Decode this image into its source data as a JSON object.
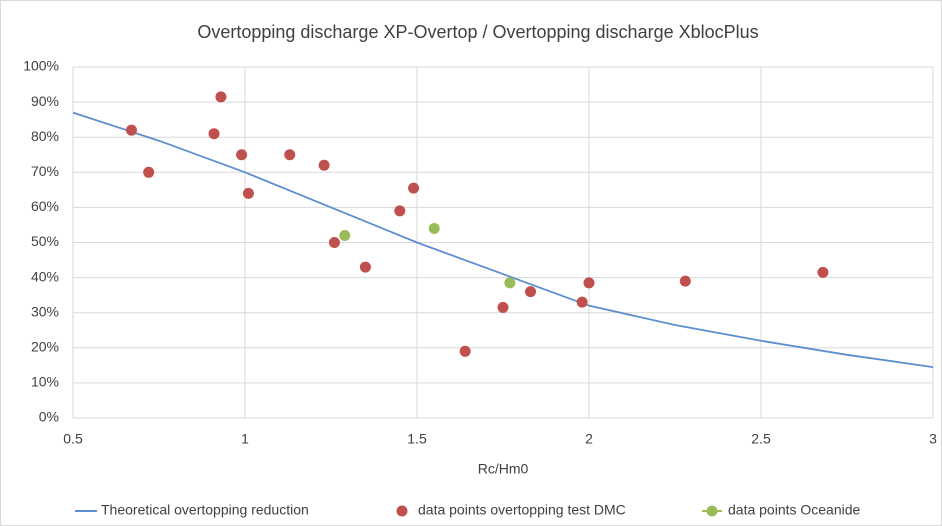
{
  "chart_data": {
    "type": "scatter",
    "title": "Overtopping discharge XP-Overtop / Overtopping discharge XblocPlus",
    "x_label": "Rc/Hm0",
    "xlim": [
      0.5,
      3
    ],
    "xticks": [
      0.5,
      1,
      1.5,
      2,
      2.5,
      3
    ],
    "ylim": [
      0,
      100
    ],
    "yticks": [
      {
        "value": 0,
        "label": "0%"
      },
      {
        "value": 10,
        "label": "10%"
      },
      {
        "value": 20,
        "label": "20%"
      },
      {
        "value": 30,
        "label": "30%"
      },
      {
        "value": 40,
        "label": "40%"
      },
      {
        "value": 50,
        "label": "50%"
      },
      {
        "value": 60,
        "label": "60%"
      },
      {
        "value": 70,
        "label": "70%"
      },
      {
        "value": 80,
        "label": "80%"
      },
      {
        "value": 90,
        "label": "90%"
      },
      {
        "value": 100,
        "label": "100%"
      }
    ],
    "grid": true,
    "legend": "bottom",
    "series": [
      {
        "name": "Theoretical overtopping reduction",
        "color": "#5b8fd0",
        "type": "line",
        "x": [
          0.5,
          0.75,
          1,
          1.25,
          1.5,
          1.75,
          2,
          2.25,
          2.5,
          2.75,
          3
        ],
        "values": [
          87,
          79,
          70,
          60,
          50,
          41,
          32,
          26.5,
          22,
          18,
          14.5
        ]
      },
      {
        "name": "data points overtopping test DMC",
        "color": "#c0504d",
        "type": "scatter",
        "x": [
          0.67,
          0.72,
          0.93,
          0.91,
          0.99,
          1.01,
          1.13,
          1.23,
          1.26,
          1.35,
          1.49,
          1.45,
          1.64,
          1.75,
          1.83,
          1.98,
          2.0,
          2.28,
          2.68
        ],
        "values": [
          82,
          70,
          91.5,
          81,
          75,
          64,
          75,
          72,
          50,
          43,
          65.5,
          59,
          19,
          31.5,
          36,
          33,
          38.5,
          39,
          41.5
        ]
      },
      {
        "name": "data points Oceanide",
        "color": "#9bbb59",
        "type": "scatter",
        "x": [
          1.29,
          1.55,
          1.77
        ],
        "values": [
          52,
          54,
          38.5
        ]
      }
    ]
  }
}
